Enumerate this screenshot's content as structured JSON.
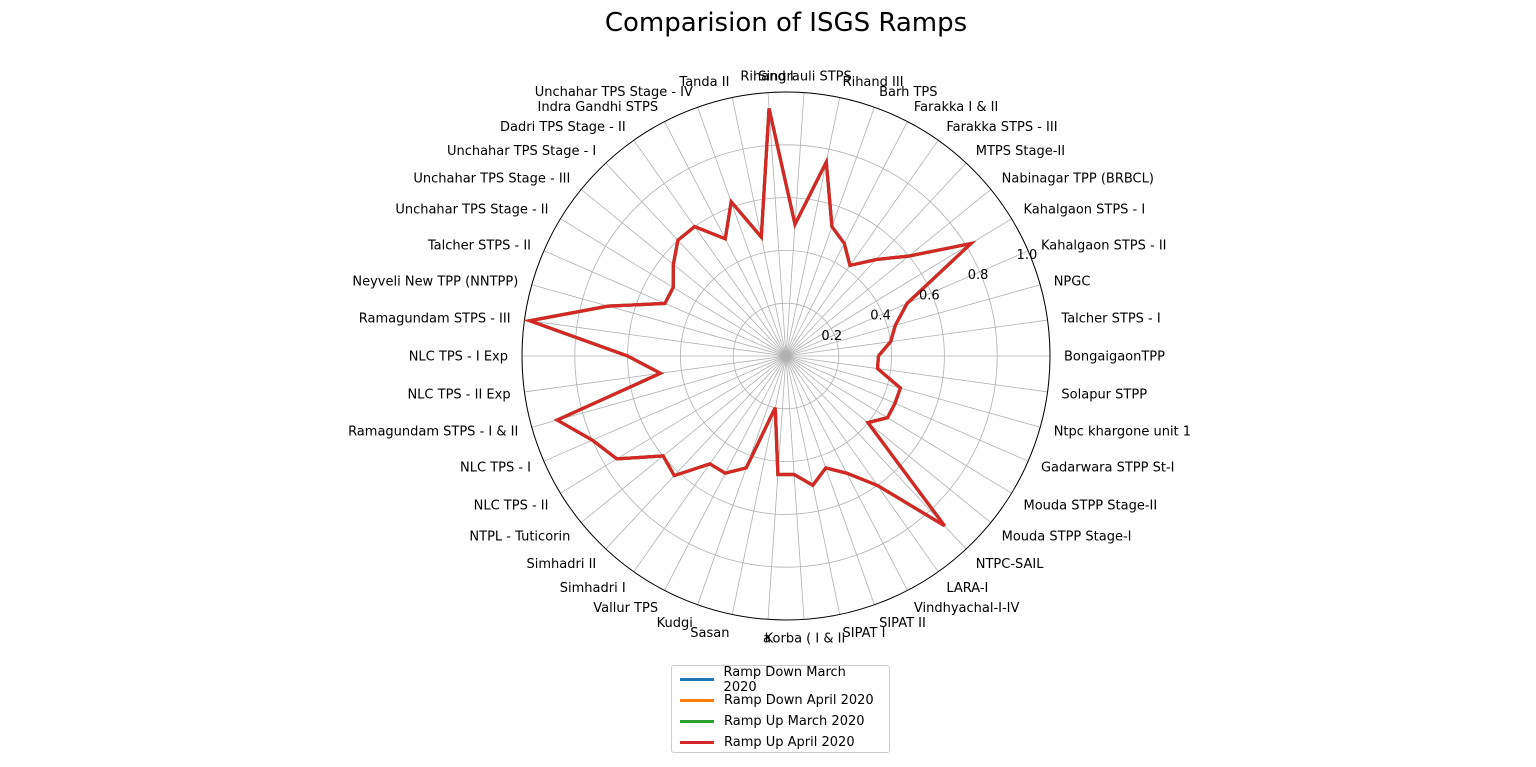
{
  "chart_data": {
    "type": "radar",
    "title": "Comparision of ISGS Ramps",
    "r_ticks": [
      "0.2",
      "0.4",
      "0.6",
      "0.8",
      "1.0"
    ],
    "r_tick_values": [
      0.2,
      0.4,
      0.6,
      0.8,
      1.0
    ],
    "rlim": [
      0,
      1.0
    ],
    "grid": true,
    "legend_position": "bottom-center",
    "categories": [
      "BongaigaonTPP",
      "Talcher STPS - I",
      "NPGC",
      "Kahalgaon STPS - II",
      "Kahalgaon STPS - I",
      "Nabinagar TPP (BRBCL)",
      "MTPS Stage-II",
      "Farakka STPS - III",
      "Farakka I & II",
      "Barh TPS",
      "Rihand III",
      "Singrauli STPS",
      "Rihand I",
      "Tanda II",
      "Unchahar TPS Stage - IV",
      "Indra Gandhi STPS",
      "Dadri TPS Stage - II",
      "Unchahar TPS Stage - I",
      "Unchahar TPS Stage - III",
      "Unchahar TPS Stage - II",
      "Talcher STPS - II",
      "Neyveli New TPP (NNTPP)",
      "Ramagundam STPS - III",
      "NLC TPS - I Exp",
      "NLC TPS - II Exp",
      "Ramagundam STPS - I & II",
      "NLC TPS - I",
      "NLC TPS - II",
      "NTPL - Tuticorin",
      "Simhadri  II",
      "Simhadri I",
      "Vallur TPS",
      "Kudgi",
      "Sasan",
      "a",
      "Korba ( I & II",
      "SIPAT I",
      "SIPAT II",
      "Vindhyachal-I-IV",
      "LARA-I",
      "NTPC-SAIL",
      "Mouda STPP Stage-I",
      "Mouda STPP Stage-II",
      "Gadarwara STPP St-I",
      "Ntpc khargone unit 1",
      "Solapur STPP"
    ],
    "series": [
      {
        "name": "Ramp Down March 2020",
        "color": "#1f77b4",
        "values": [
          0.35,
          0.4,
          0.43,
          0.5,
          0.82,
          0.6,
          0.5,
          0.42,
          0.48,
          0.52,
          0.75,
          0.5,
          0.94,
          0.46,
          0.62,
          0.5,
          0.6,
          0.6,
          0.55,
          0.5,
          0.5,
          0.7,
          0.98,
          0.6,
          0.48,
          0.9,
          0.8,
          0.75,
          0.6,
          0.62,
          0.5,
          0.5,
          0.45,
          0.2,
          0.45,
          0.45,
          0.5,
          0.45,
          0.5,
          0.6,
          0.88,
          0.4,
          0.45,
          0.45,
          0.45,
          0.35
        ]
      },
      {
        "name": "Ramp Down April 2020",
        "color": "#ff7f0e",
        "values": [
          0.35,
          0.4,
          0.43,
          0.5,
          0.82,
          0.6,
          0.5,
          0.42,
          0.48,
          0.52,
          0.75,
          0.5,
          0.94,
          0.46,
          0.62,
          0.5,
          0.6,
          0.6,
          0.55,
          0.5,
          0.5,
          0.7,
          0.98,
          0.6,
          0.48,
          0.9,
          0.8,
          0.75,
          0.6,
          0.62,
          0.5,
          0.5,
          0.45,
          0.2,
          0.45,
          0.45,
          0.5,
          0.45,
          0.5,
          0.6,
          0.88,
          0.4,
          0.45,
          0.45,
          0.45,
          0.35
        ]
      },
      {
        "name": "Ramp Up March 2020",
        "color": "#2ca02c",
        "values": [
          0.35,
          0.4,
          0.43,
          0.5,
          0.82,
          0.6,
          0.5,
          0.42,
          0.48,
          0.52,
          0.75,
          0.5,
          0.94,
          0.46,
          0.62,
          0.5,
          0.6,
          0.6,
          0.55,
          0.5,
          0.5,
          0.7,
          0.98,
          0.6,
          0.48,
          0.9,
          0.8,
          0.75,
          0.6,
          0.62,
          0.5,
          0.5,
          0.45,
          0.2,
          0.45,
          0.45,
          0.5,
          0.45,
          0.5,
          0.6,
          0.88,
          0.4,
          0.45,
          0.45,
          0.45,
          0.35
        ]
      },
      {
        "name": "Ramp Up April 2020",
        "color": "#d62728",
        "values": [
          0.35,
          0.4,
          0.43,
          0.5,
          0.82,
          0.6,
          0.5,
          0.42,
          0.48,
          0.52,
          0.75,
          0.5,
          0.94,
          0.46,
          0.62,
          0.5,
          0.6,
          0.6,
          0.55,
          0.5,
          0.5,
          0.7,
          0.98,
          0.6,
          0.48,
          0.9,
          0.8,
          0.75,
          0.6,
          0.62,
          0.5,
          0.5,
          0.45,
          0.2,
          0.45,
          0.45,
          0.5,
          0.45,
          0.5,
          0.6,
          0.88,
          0.4,
          0.45,
          0.45,
          0.45,
          0.35
        ]
      }
    ]
  }
}
